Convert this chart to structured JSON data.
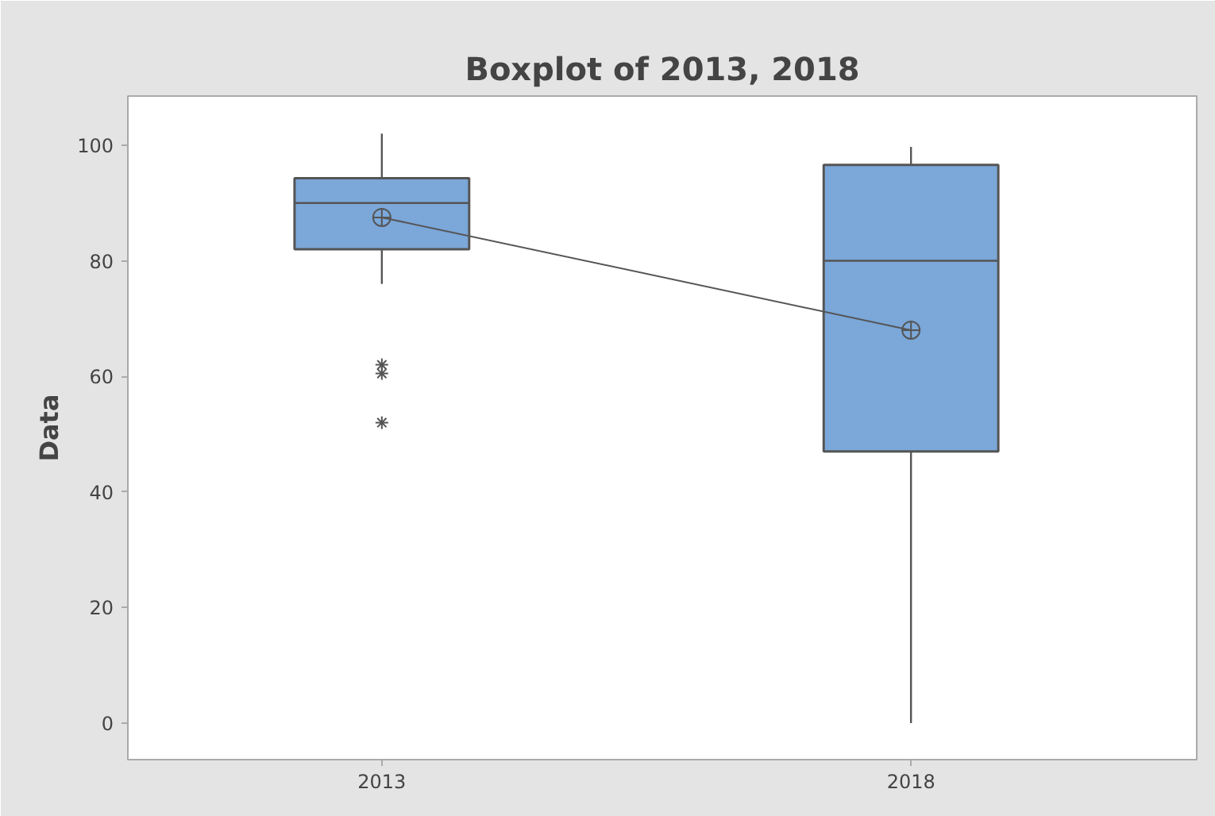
{
  "chart_data": {
    "type": "box",
    "title": "Boxplot of 2013, 2018",
    "ylabel": "Data",
    "categories": [
      "2013",
      "2018"
    ],
    "boxes": [
      {
        "low": 76,
        "q1": 82,
        "median": 90,
        "q3": 94.3,
        "high": 102,
        "outliers": [
          62,
          60.5,
          52
        ]
      },
      {
        "low": 0,
        "q1": 47,
        "median": 80,
        "q3": 96.6,
        "high": 99.7
      }
    ],
    "series": [
      {
        "type": "line",
        "color": "#555555",
        "values": [
          87.5,
          68
        ],
        "marker": "circle"
      }
    ],
    "color": "#7ba7d9",
    "ylim": [
      -6.3,
      108.5
    ],
    "yticks": [
      0,
      20,
      40,
      60,
      80,
      100
    ],
    "grid": false
  }
}
